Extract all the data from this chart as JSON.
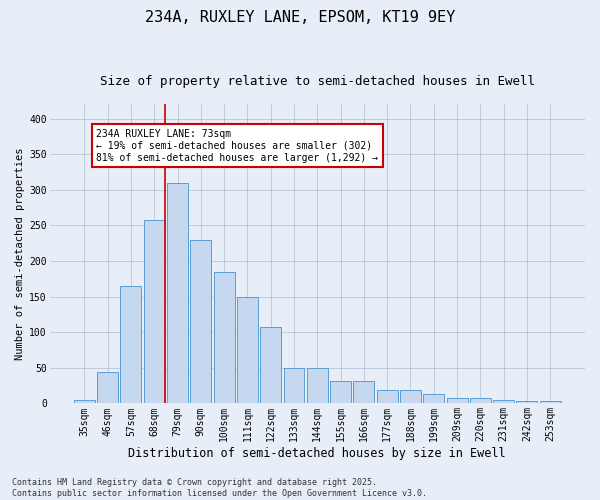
{
  "title": "234A, RUXLEY LANE, EPSOM, KT19 9EY",
  "subtitle": "Size of property relative to semi-detached houses in Ewell",
  "xlabel": "Distribution of semi-detached houses by size in Ewell",
  "ylabel": "Number of semi-detached properties",
  "categories": [
    "35sqm",
    "46sqm",
    "57sqm",
    "68sqm",
    "79sqm",
    "90sqm",
    "100sqm",
    "111sqm",
    "122sqm",
    "133sqm",
    "144sqm",
    "155sqm",
    "166sqm",
    "177sqm",
    "188sqm",
    "199sqm",
    "209sqm",
    "220sqm",
    "231sqm",
    "242sqm",
    "253sqm"
  ],
  "values": [
    5,
    44,
    165,
    257,
    310,
    230,
    185,
    150,
    108,
    50,
    50,
    32,
    32,
    19,
    19,
    13,
    8,
    8,
    5,
    4,
    4
  ],
  "bar_color": "#c5d8f0",
  "bar_edge_color": "#5a9fd4",
  "vline_x_index": 3,
  "vline_color": "#cc0000",
  "annotation_text": "234A RUXLEY LANE: 73sqm\n← 19% of semi-detached houses are smaller (302)\n81% of semi-detached houses are larger (1,292) →",
  "annotation_box_color": "#ffffff",
  "annotation_box_edge_color": "#cc0000",
  "background_color": "#e8eef7",
  "plot_bg_color": "#e8eef7",
  "footer_text": "Contains HM Land Registry data © Crown copyright and database right 2025.\nContains public sector information licensed under the Open Government Licence v3.0.",
  "ylim": [
    0,
    420
  ],
  "yticks": [
    0,
    50,
    100,
    150,
    200,
    250,
    300,
    350,
    400
  ],
  "title_fontsize": 11,
  "subtitle_fontsize": 9,
  "xlabel_fontsize": 8.5,
  "ylabel_fontsize": 7.5,
  "tick_fontsize": 7,
  "annotation_fontsize": 7,
  "footer_fontsize": 6
}
